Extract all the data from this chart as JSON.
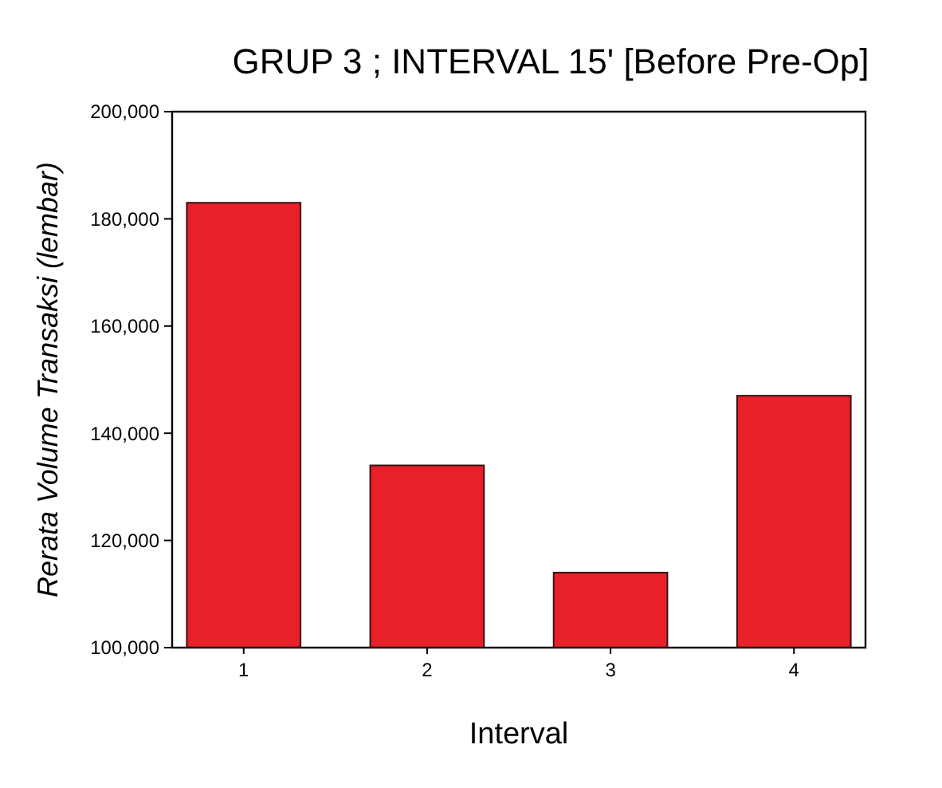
{
  "chart_data": {
    "type": "bar",
    "title": "GRUP 3 ; INTERVAL 15' [Before Pre-Op]",
    "xlabel": "Interval",
    "ylabel": "Rerata Volume Transaksi (lembar)",
    "categories": [
      "1",
      "2",
      "3",
      "4"
    ],
    "values": [
      183000,
      134000,
      114000,
      147000
    ],
    "color": "#e8202a",
    "ylim": [
      100000,
      200000
    ],
    "yticks": [
      {
        "value": 100000,
        "label": "100,000"
      },
      {
        "value": 120000,
        "label": "120,000"
      },
      {
        "value": 140000,
        "label": "140,000"
      },
      {
        "value": 160000,
        "label": "160,000"
      },
      {
        "value": 180000,
        "label": "180,000"
      },
      {
        "value": 200000,
        "label": "200,000"
      }
    ],
    "grid": false
  }
}
